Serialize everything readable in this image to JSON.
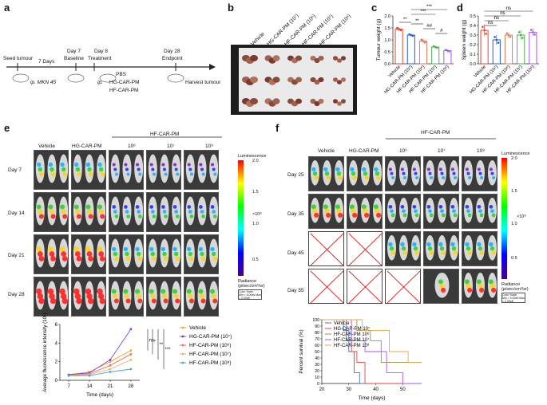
{
  "panels": {
    "a": "a",
    "b": "b",
    "c": "c",
    "d": "d",
    "e": "e",
    "f": "f"
  },
  "timeline": {
    "seed": "Seed tumour",
    "seven_days": "7 Days",
    "ip_mkn": "ip. MKN 45",
    "day7": "Day 7",
    "baseline": "Baseline",
    "day8": "Day 8",
    "treatment": "Treatment",
    "day28": "Day 28",
    "endpoint": "Endpoint",
    "ip": "ip.",
    "pbs": "PBS",
    "hg": "HG-CAR-PM",
    "hf": "HF-CAR-PM",
    "harvest": "Harvest tumour"
  },
  "panel_b": {
    "labels": [
      "Vehicle",
      "HG-CAR-PM (10⁷)",
      "HF-CAR-PM (10⁶)",
      "HF-CAR-PM (10⁷)",
      "HF-CAR-PM (10⁸)"
    ],
    "tumour_colors": [
      "#8a4a3a",
      "#a06050",
      "#7a3a30",
      "#b07060"
    ]
  },
  "panel_c": {
    "ylabel": "Tumour weight (g)",
    "yticks": [
      "0.0",
      "0.5",
      "1.0",
      "1.5",
      "2.0"
    ],
    "groups": [
      "Vehicle",
      "HG-CAR-PM (10⁷)",
      "HF-CAR-PM (10⁶)",
      "HF-CAR-PM (10⁷)",
      "HF-CAR-PM (10⁸)"
    ],
    "values": [
      1.45,
      1.2,
      0.95,
      0.7,
      0.55
    ],
    "errors": [
      0.08,
      0.05,
      0.1,
      0.05,
      0.05
    ],
    "ymax": 2.0,
    "sig": [
      "**",
      "***",
      "***",
      "**",
      "##",
      "#"
    ]
  },
  "panel_d": {
    "ylabel": "Spleen weight (g)",
    "yticks": [
      "0.0",
      "0.1",
      "0.2",
      "0.3",
      "0.4",
      "0.5"
    ],
    "groups": [
      "Vehicle",
      "HG-CAR-PM (10⁷)",
      "HF-CAR-PM (10⁶)",
      "HF-CAR-PM (10⁷)",
      "HF-CAR-PM (10⁸)"
    ],
    "values": [
      0.35,
      0.25,
      0.3,
      0.3,
      0.33
    ],
    "errors": [
      0.06,
      0.05,
      0.03,
      0.05,
      0.04
    ],
    "ymax": 0.5,
    "sig": [
      "ns",
      "ns",
      "ns",
      "ns"
    ]
  },
  "bar_colors": [
    "#e8433a",
    "#1f5fd1",
    "#e07a5f",
    "#4caf50",
    "#a855f7"
  ],
  "panel_e": {
    "hf_group": "HF-CAR-PM",
    "cols": [
      "Vehicle",
      "HG-CAR-PM",
      "10⁶",
      "10⁷",
      "10⁸"
    ],
    "rows": [
      "Day 7",
      "Day 14",
      "Day 21",
      "Day 28"
    ],
    "scale_title": "Luminescence",
    "scale_ticks": [
      "2.0",
      "1.5",
      "1.0",
      "0.5"
    ],
    "scale_unit": "×10⁸",
    "radiance": "Radiance",
    "radiance_unit": "(p/sec/cm²/sr)",
    "color_scale": "Color Scale",
    "min_max": "Min = 5.00e6  Max = 2.00e8"
  },
  "chart_data": [
    {
      "type": "line",
      "title": "",
      "xlabel": "Time (days)",
      "ylabel": "Average fluorescence intensity (10⁸)",
      "x": [
        7,
        14,
        21,
        28
      ],
      "xticks": [
        "7",
        "14",
        "21",
        "28"
      ],
      "yticks": [
        "0",
        "2",
        "4",
        "6"
      ],
      "ylim": [
        0,
        6
      ],
      "series": [
        {
          "name": "Vehicle",
          "color": "#f5a623",
          "values": [
            0.6,
            0.9,
            2.0,
            3.2
          ]
        },
        {
          "name": "HG-CAR-PM (10⁷)",
          "color": "#7b3fe4",
          "values": [
            0.6,
            0.8,
            2.2,
            5.5
          ]
        },
        {
          "name": "HF-CAR-PM (10⁶)",
          "color": "#f26b6b",
          "values": [
            0.5,
            0.7,
            1.6,
            2.8
          ]
        },
        {
          "name": "HF-CAR-PM (10⁷)",
          "color": "#e6b85c",
          "values": [
            0.5,
            0.6,
            1.2,
            2.2
          ]
        },
        {
          "name": "HF-CAR-PM (10⁸)",
          "color": "#4aa3df",
          "values": [
            0.5,
            0.5,
            0.9,
            1.2
          ]
        }
      ],
      "sig": [
        "ns",
        "*",
        "**",
        "***"
      ]
    },
    {
      "type": "line",
      "title": "",
      "xlabel": "Time (days)",
      "ylabel": "Percent survival (%)",
      "x": [
        20,
        30,
        40,
        50
      ],
      "xticks": [
        "20",
        "30",
        "40",
        "50"
      ],
      "yticks": [
        "0",
        "10",
        "20",
        "30",
        "40",
        "50",
        "60",
        "70",
        "80",
        "90",
        "100"
      ],
      "ylim": [
        0,
        100
      ],
      "xlim": [
        20,
        57
      ],
      "series": [
        {
          "name": "Vehicle",
          "color": "#4a6fd1",
          "steps": [
            [
              20,
              100
            ],
            [
              28,
              100
            ],
            [
              28,
              83
            ],
            [
              30,
              83
            ],
            [
              30,
              50
            ],
            [
              32,
              50
            ],
            [
              32,
              17
            ],
            [
              34,
              17
            ],
            [
              34,
              0
            ],
            [
              57,
              0
            ]
          ]
        },
        {
          "name": "HG-CAR-PM 10⁷",
          "color": "#e8433a",
          "steps": [
            [
              20,
              100
            ],
            [
              29,
              100
            ],
            [
              29,
              67
            ],
            [
              31,
              67
            ],
            [
              31,
              50
            ],
            [
              33,
              50
            ],
            [
              33,
              33
            ],
            [
              36,
              33
            ],
            [
              36,
              0
            ],
            [
              57,
              0
            ]
          ]
        },
        {
          "name": "HF-CAR-PM 10⁶",
          "color": "#a38a4a",
          "steps": [
            [
              20,
              100
            ],
            [
              33,
              100
            ],
            [
              33,
              83
            ],
            [
              38,
              83
            ],
            [
              38,
              67
            ],
            [
              42,
              67
            ],
            [
              42,
              33
            ],
            [
              57,
              33
            ]
          ]
        },
        {
          "name": "HF-CAR-PM 10⁷",
          "color": "#a855f7",
          "steps": [
            [
              20,
              100
            ],
            [
              31,
              100
            ],
            [
              31,
              67
            ],
            [
              36,
              67
            ],
            [
              36,
              50
            ],
            [
              44,
              50
            ],
            [
              44,
              17
            ],
            [
              50,
              17
            ],
            [
              50,
              0
            ],
            [
              57,
              0
            ]
          ]
        },
        {
          "name": "HF-CAR-PM 10⁸",
          "color": "#e6a84a",
          "steps": [
            [
              20,
              100
            ],
            [
              35,
              100
            ],
            [
              35,
              83
            ],
            [
              45,
              83
            ],
            [
              45,
              50
            ],
            [
              52,
              50
            ],
            [
              52,
              33
            ],
            [
              57,
              33
            ]
          ]
        }
      ]
    }
  ],
  "panel_f": {
    "hf_group": "HF-CAR-PM",
    "cols": [
      "Vehicle",
      "HG-CAR-PM",
      "10⁶",
      "10⁷",
      "10⁸"
    ],
    "rows": [
      "Day 25",
      "Day 35",
      "Day 45",
      "Day 55"
    ],
    "scale_title": "Luminescence",
    "scale_ticks": [
      "2.0",
      "1.5",
      "1.0",
      "0.5"
    ],
    "scale_unit": "×10⁸",
    "radiance": "Radiance",
    "radiance_unit": "(p/sec/cm²/sr)",
    "color_scale": "Color Scale",
    "min_max": "Min = 5.00e6  Max = 2.00e8"
  }
}
